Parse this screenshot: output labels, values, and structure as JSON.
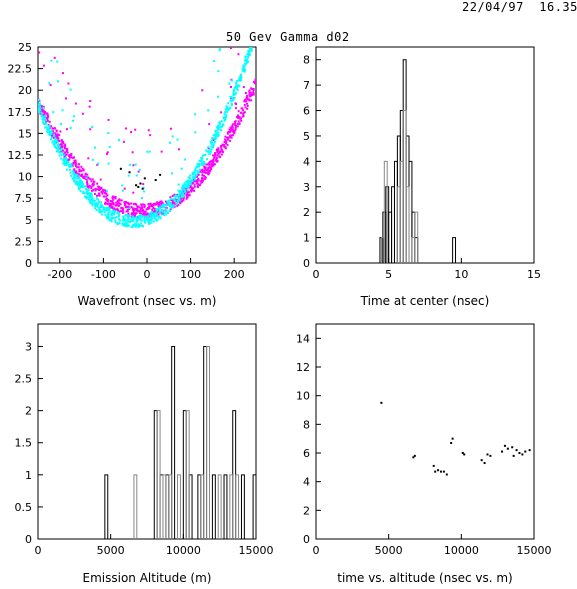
{
  "header": {
    "timestamp": "22/04/97  16.35",
    "title": "50 Gev Gamma d02"
  },
  "colors": {
    "magenta": "#ff00ff",
    "cyan": "#00ffff",
    "black": "#000000"
  },
  "chart_data": [
    {
      "id": "wavefront",
      "type": "scatter",
      "xlabel": "Wavefront (nsec vs. m)",
      "xlim": [
        -250,
        250
      ],
      "ylim": [
        0,
        25
      ],
      "xticks": [
        -200,
        -100,
        0,
        100,
        200
      ],
      "yticks": [
        0,
        2.5,
        5,
        7.5,
        10,
        12.5,
        15,
        17.5,
        20,
        22.5,
        25
      ],
      "ytick_labels": [
        "0",
        "2.5",
        "5",
        "7.5",
        "10",
        "12.5",
        "15",
        "17.5",
        "20",
        "22.5",
        "25"
      ],
      "series": [
        {
          "color": "#ff00ff",
          "curve": {
            "vertex_x": -10,
            "vertex_y": 6.0,
            "curvature": 0.00022,
            "spread": 0.8
          }
        },
        {
          "color": "#00ffff",
          "curve": {
            "vertex_x": -30,
            "vertex_y": 4.8,
            "curvature": 0.00028,
            "spread": 0.7
          }
        }
      ],
      "black_points": [
        [
          -20,
          8.8
        ],
        [
          -15,
          9.2
        ],
        [
          -10,
          8.6
        ],
        [
          20,
          9.6
        ],
        [
          -40,
          10.5
        ],
        [
          -25,
          9.0
        ],
        [
          -5,
          9.8
        ],
        [
          30,
          10.2
        ],
        [
          -60,
          10.9
        ]
      ]
    },
    {
      "id": "time-at-center",
      "type": "histogram",
      "xlabel": "Time at center (nsec)",
      "xlim": [
        0,
        15
      ],
      "ylim": [
        0,
        8.5
      ],
      "xticks": [
        0,
        5,
        10,
        15
      ],
      "yticks": [
        0,
        1,
        2,
        3,
        4,
        5,
        6,
        7,
        8
      ],
      "series": [
        {
          "color": "#000000",
          "bins": [
            [
              4.4,
              4.6,
              1
            ],
            [
              4.6,
              4.8,
              2
            ],
            [
              4.8,
              5.0,
              3
            ],
            [
              5.0,
              5.2,
              2
            ],
            [
              5.2,
              5.4,
              3
            ],
            [
              5.4,
              5.6,
              4
            ],
            [
              5.6,
              5.8,
              5
            ],
            [
              5.8,
              6.0,
              6
            ],
            [
              6.0,
              6.2,
              8
            ],
            [
              6.2,
              6.4,
              5
            ],
            [
              6.4,
              6.6,
              4
            ],
            [
              6.6,
              6.8,
              2
            ],
            [
              6.8,
              7.0,
              1
            ],
            [
              9.4,
              9.6,
              1
            ]
          ]
        },
        {
          "color": "#888888",
          "bins": [
            [
              4.5,
              4.7,
              1
            ],
            [
              4.7,
              4.9,
              4
            ],
            [
              5.6,
              5.8,
              3
            ],
            [
              5.8,
              6.0,
              4
            ],
            [
              6.0,
              6.2,
              6
            ],
            [
              6.2,
              6.4,
              3
            ],
            [
              6.6,
              6.8,
              1
            ],
            [
              6.8,
              7.0,
              2
            ]
          ]
        }
      ]
    },
    {
      "id": "emission-altitude",
      "type": "histogram",
      "xlabel": "Emission Altitude (m)",
      "xlim": [
        0,
        15000
      ],
      "ylim": [
        0,
        3.35
      ],
      "xticks": [
        0,
        5000,
        10000,
        15000
      ],
      "yticks": [
        0,
        0.5,
        1,
        1.5,
        2,
        2.5,
        3
      ],
      "series": [
        {
          "color": "#000000",
          "bins": [
            [
              4600,
              4800,
              1
            ],
            [
              8000,
              8200,
              2
            ],
            [
              8400,
              8600,
              1
            ],
            [
              8800,
              9000,
              1
            ],
            [
              9200,
              9400,
              3
            ],
            [
              10000,
              10200,
              2
            ],
            [
              10400,
              10600,
              1
            ],
            [
              11000,
              11200,
              1
            ],
            [
              11400,
              11600,
              3
            ],
            [
              12000,
              12200,
              1
            ],
            [
              12800,
              13000,
              1
            ],
            [
              13400,
              13600,
              2
            ],
            [
              14000,
              14200,
              1
            ],
            [
              14800,
              15000,
              1
            ]
          ]
        },
        {
          "color": "#888888",
          "bins": [
            [
              6600,
              6800,
              1
            ],
            [
              8200,
              8400,
              2
            ],
            [
              8600,
              8800,
              1
            ],
            [
              9000,
              9200,
              1
            ],
            [
              9600,
              9800,
              1
            ],
            [
              10200,
              10400,
              2
            ],
            [
              11200,
              11400,
              1
            ],
            [
              11600,
              11800,
              3
            ],
            [
              12400,
              12600,
              1
            ],
            [
              13200,
              13400,
              1
            ],
            [
              13600,
              13800,
              1
            ]
          ]
        }
      ]
    },
    {
      "id": "time-vs-altitude",
      "type": "scatter",
      "xlabel": "time vs. altitude (nsec vs. m)",
      "xlim": [
        0,
        15000
      ],
      "ylim": [
        0,
        15
      ],
      "xticks": [
        0,
        5000,
        10000,
        15000
      ],
      "yticks": [
        0,
        2,
        4,
        6,
        8,
        10,
        12,
        14
      ],
      "series": [
        {
          "color": "#000000",
          "points": [
            [
              4500,
              9.5
            ],
            [
              6700,
              5.7
            ],
            [
              6800,
              5.8
            ],
            [
              8100,
              5.1
            ],
            [
              8200,
              4.7
            ],
            [
              8400,
              4.8
            ],
            [
              8600,
              4.7
            ],
            [
              8800,
              4.7
            ],
            [
              9000,
              4.5
            ],
            [
              9300,
              6.7
            ],
            [
              9400,
              7.0
            ],
            [
              10100,
              6.0
            ],
            [
              10200,
              5.9
            ],
            [
              11400,
              5.5
            ],
            [
              11600,
              5.3
            ],
            [
              11800,
              5.9
            ],
            [
              12000,
              5.8
            ],
            [
              12800,
              6.1
            ],
            [
              13000,
              6.5
            ],
            [
              13200,
              6.3
            ],
            [
              13500,
              6.4
            ],
            [
              13600,
              5.8
            ],
            [
              13800,
              6.2
            ],
            [
              14000,
              6.0
            ],
            [
              14200,
              5.9
            ],
            [
              14400,
              6.1
            ],
            [
              14700,
              6.2
            ]
          ]
        }
      ]
    }
  ]
}
